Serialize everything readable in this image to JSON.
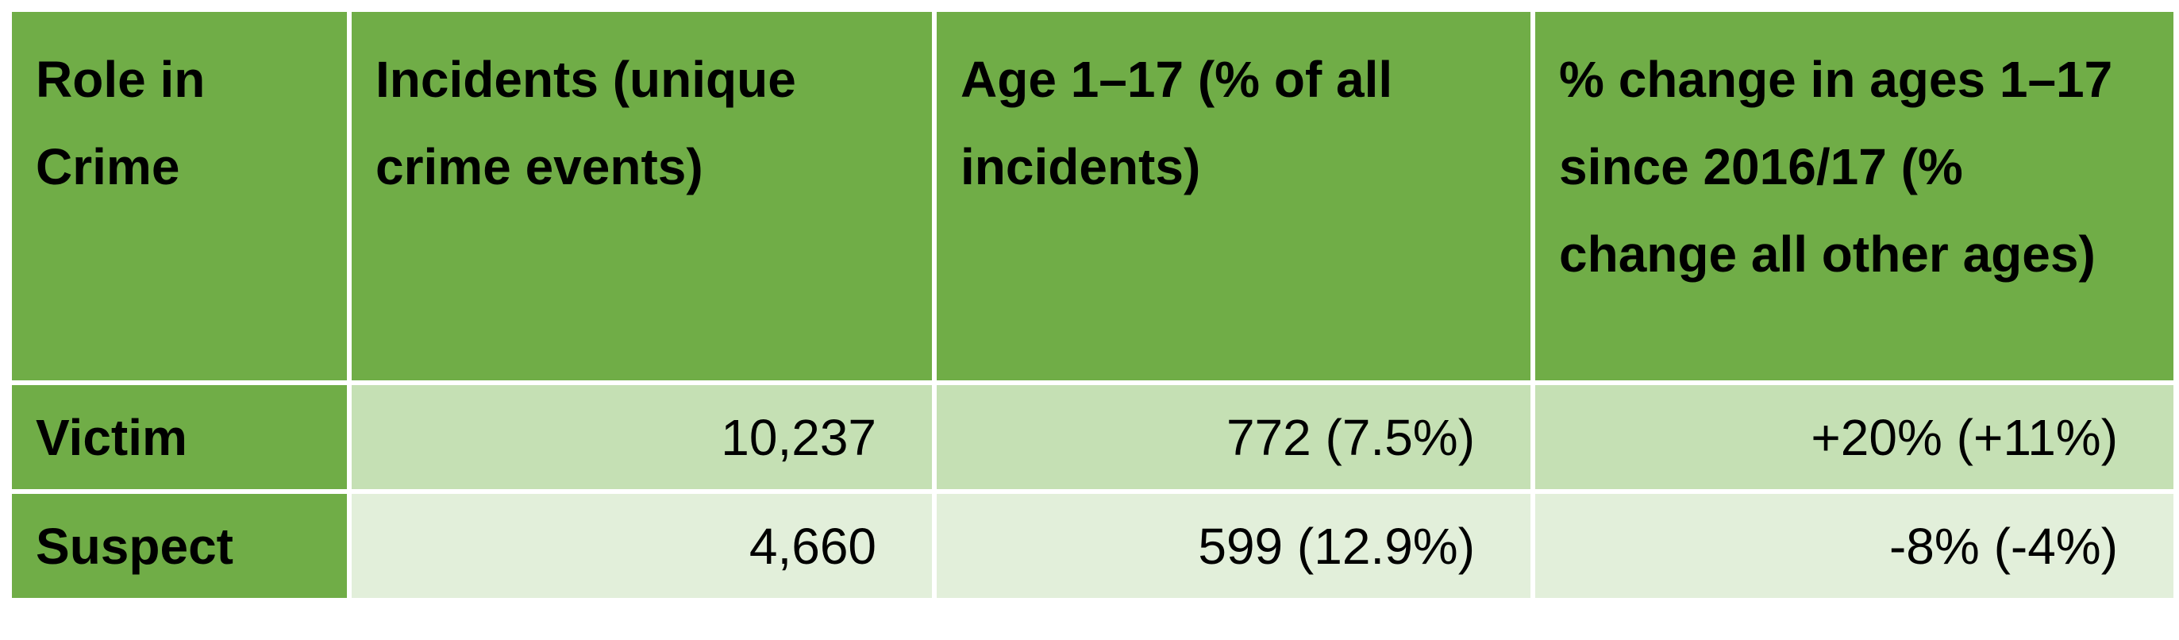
{
  "table": {
    "header": [
      "Role in Crime",
      "Incidents (unique crime events)",
      "Age 1–17 (% of all incidents)",
      "% change in ages 1–17 since 2016/17 (% change all other ages)"
    ],
    "rows": [
      [
        "Victim",
        "10,237",
        "772 (7.5%)",
        "+20% (+11%)"
      ],
      [
        "Suspect",
        "4,660",
        "599 (12.9%)",
        "-8% (-4%)"
      ]
    ]
  }
}
